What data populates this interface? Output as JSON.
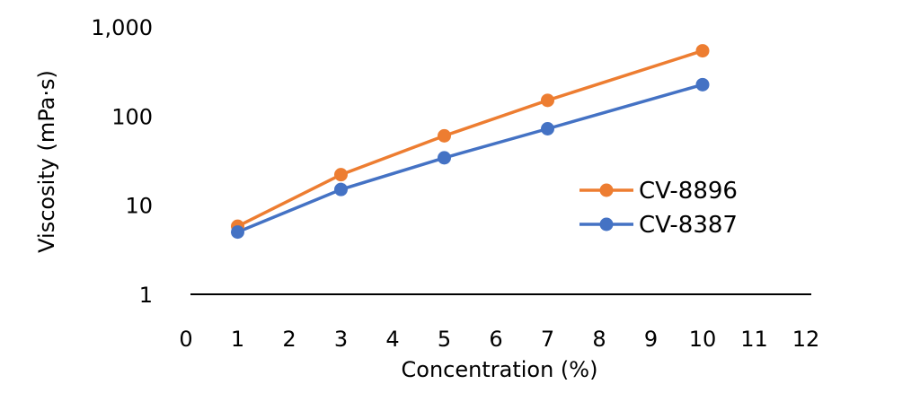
{
  "chart_data": {
    "type": "line",
    "xlabel": "Concentration (%)",
    "ylabel": "Viscosity (mPa·s)",
    "xlim": [
      0,
      12
    ],
    "ylim": [
      1,
      1000
    ],
    "yscale": "log",
    "x_ticks": [
      "0",
      "1",
      "2",
      "3",
      "4",
      "5",
      "6",
      "7",
      "8",
      "9",
      "10",
      "11",
      "12"
    ],
    "y_ticks": [
      {
        "value": 1,
        "label": "1"
      },
      {
        "value": 10,
        "label": "10"
      },
      {
        "value": 100,
        "label": "100"
      },
      {
        "value": 1000,
        "label": "1,000"
      }
    ],
    "grid": false,
    "legend_position": "right",
    "series": [
      {
        "name": "CV-8896",
        "color": "#ED7D31",
        "x": [
          1,
          3,
          5,
          7,
          10
        ],
        "y": [
          5.8,
          22,
          60,
          150,
          540
        ]
      },
      {
        "name": "CV-8387",
        "color": "#4472C4",
        "x": [
          1,
          3,
          5,
          7,
          10
        ],
        "y": [
          5,
          15,
          34,
          72,
          225
        ]
      }
    ]
  }
}
